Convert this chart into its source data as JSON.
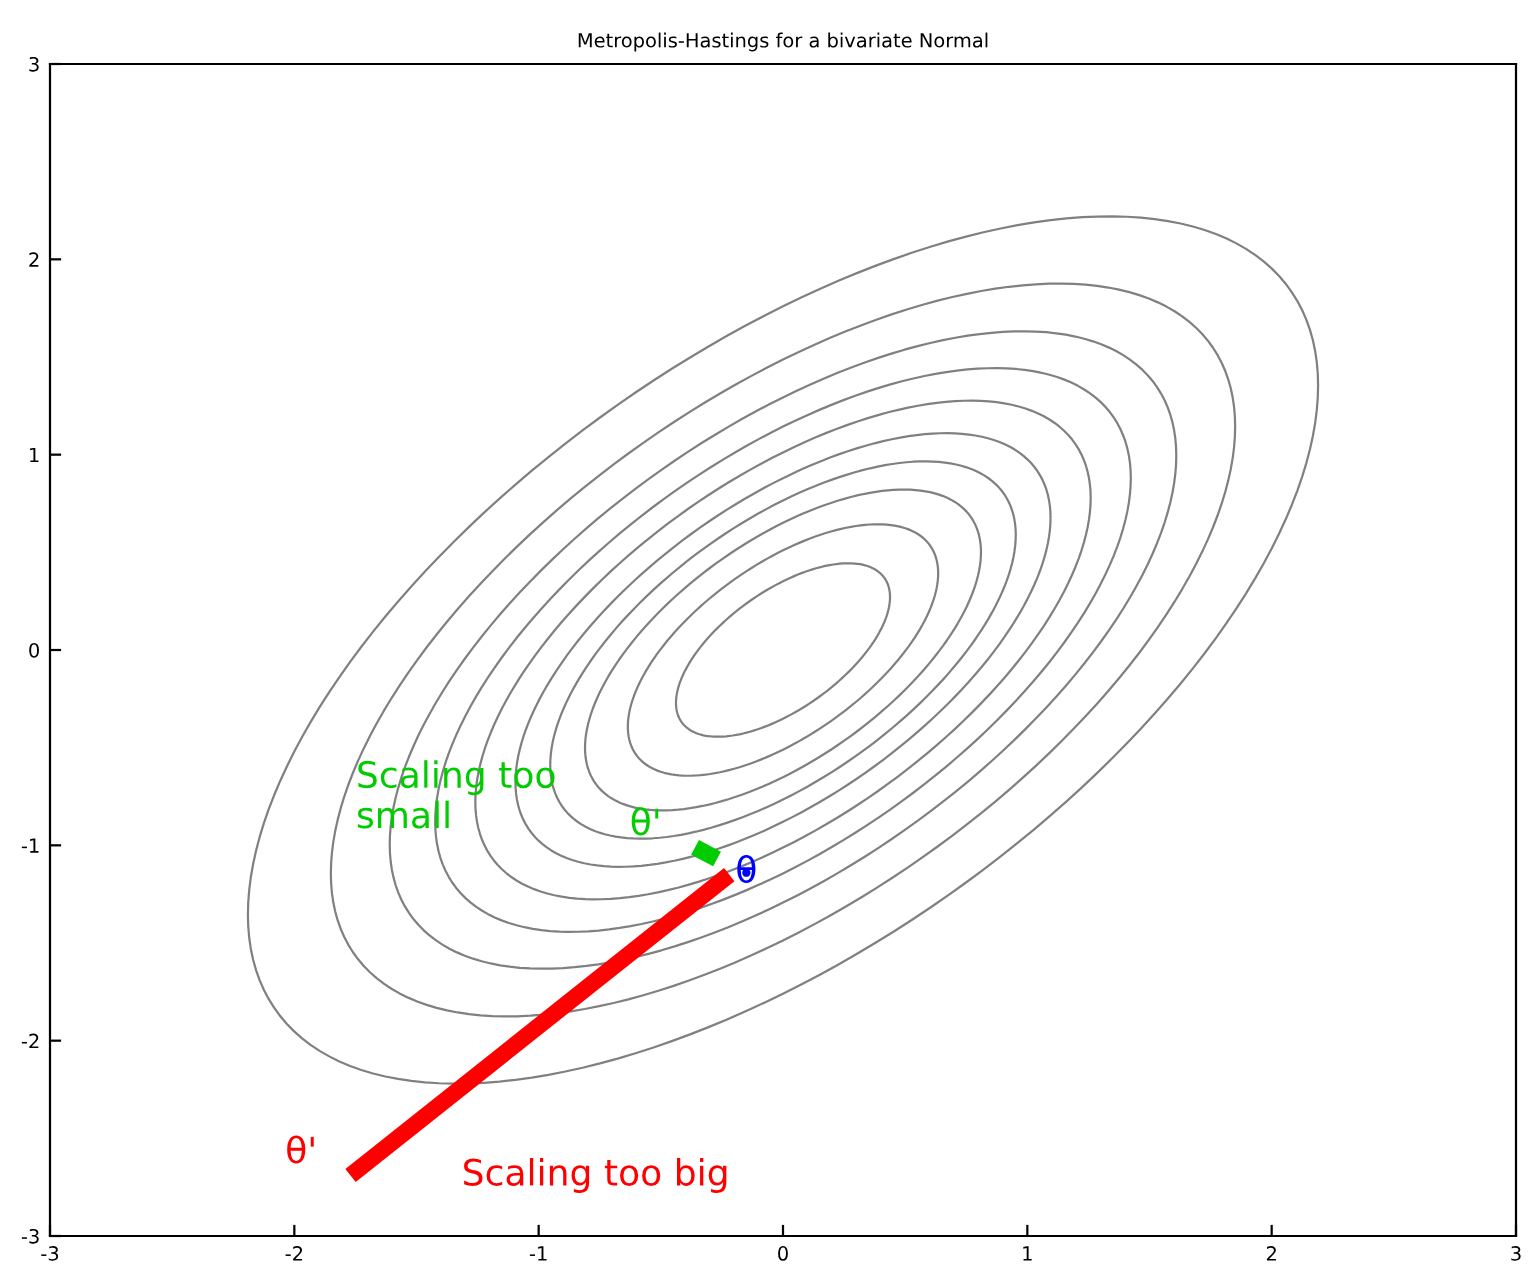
{
  "chart_data": {
    "type": "line",
    "title": "Metropolis-Hastings for a bivariate Normal",
    "xlim": [
      -3,
      3
    ],
    "ylim": [
      -3,
      3
    ],
    "xticks": [
      -3,
      -2,
      -1,
      0,
      1,
      2,
      3
    ],
    "yticks": [
      -3,
      -2,
      -1,
      0,
      1,
      2,
      3
    ],
    "grid": false,
    "legend": false,
    "series": [
      {
        "name": "Scaling too big",
        "color": "#ff0000",
        "x": [
          -1.77,
          -0.22
        ],
        "values": [
          -2.69,
          -1.15
        ]
      },
      {
        "name": "Scaling too\nsmall",
        "color": "#00cc00",
        "x": [
          -0.27,
          -0.36
        ],
        "values": [
          -1.07,
          -1.01
        ]
      },
      {
        "name": "θ",
        "type": "scatter",
        "color": "#0000ff",
        "x": [
          -0.15
        ],
        "values": [
          -1.14
        ]
      }
    ],
    "annotations": [
      {
        "text": "θ'",
        "x": -1.77,
        "y": -2.69
      },
      {
        "text": "θ'",
        "x": -0.36,
        "y": -1.01
      }
    ]
  }
}
